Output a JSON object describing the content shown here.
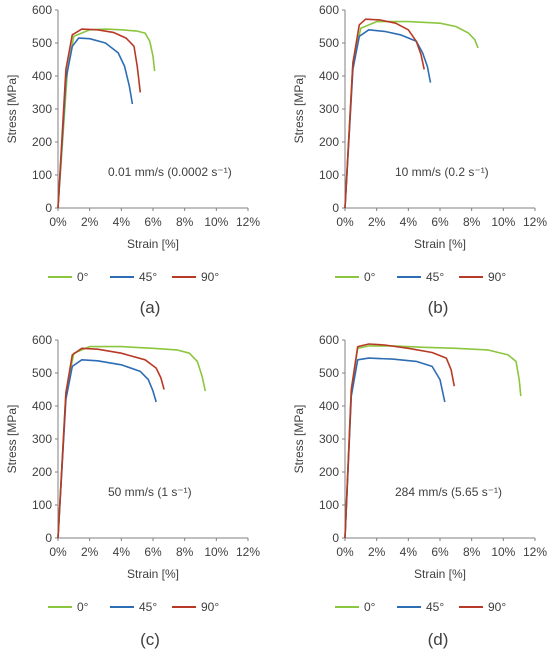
{
  "colors": {
    "s0": "#8CC63F",
    "s45": "#2E6DB4",
    "s90": "#B83A26",
    "axis": "#808080",
    "text": "#404040"
  },
  "chart_data": [
    {
      "type": "line",
      "panel_label": "(a)",
      "annotation": "0.01 mm/s (0.0002 s⁻¹)",
      "xlabel": "Strain [%]",
      "ylabel": "Stress [MPa]",
      "xlim": [
        0,
        12
      ],
      "ylim": [
        0,
        600
      ],
      "xticks": [
        "0%",
        "2%",
        "4%",
        "6%",
        "8%",
        "10%",
        "12%"
      ],
      "yticks": [
        "0",
        "100",
        "200",
        "300",
        "400",
        "500",
        "600"
      ],
      "legend": "bottom",
      "series": [
        {
          "name": "0°",
          "x": [
            0,
            0.6,
            1.0,
            2,
            3,
            4,
            5,
            5.5,
            5.8,
            6.0,
            6.1
          ],
          "y": [
            0,
            420,
            520,
            540,
            542,
            540,
            536,
            530,
            505,
            460,
            415
          ]
        },
        {
          "name": "45°",
          "x": [
            0,
            0.5,
            0.9,
            1.3,
            2,
            3,
            3.8,
            4.2,
            4.5,
            4.7
          ],
          "y": [
            0,
            390,
            490,
            515,
            513,
            500,
            470,
            430,
            370,
            315
          ]
        },
        {
          "name": "90°",
          "x": [
            0,
            0.5,
            0.9,
            1.5,
            2.5,
            3.5,
            4.3,
            4.8,
            5.0,
            5.2
          ],
          "y": [
            0,
            420,
            525,
            542,
            540,
            532,
            515,
            490,
            430,
            350
          ]
        }
      ]
    },
    {
      "type": "line",
      "panel_label": "(b)",
      "annotation": "10 mm/s (0.2 s⁻¹)",
      "xlabel": "Strain [%]",
      "ylabel": "Stress [MPa]",
      "xlim": [
        0,
        12
      ],
      "ylim": [
        0,
        600
      ],
      "xticks": [
        "0%",
        "2%",
        "4%",
        "6%",
        "8%",
        "10%",
        "12%"
      ],
      "yticks": [
        "0",
        "100",
        "200",
        "300",
        "400",
        "500",
        "600"
      ],
      "legend": "bottom",
      "series": [
        {
          "name": "0°",
          "x": [
            0,
            0.5,
            1.0,
            2,
            4,
            6,
            7,
            7.8,
            8.2,
            8.4
          ],
          "y": [
            0,
            440,
            545,
            565,
            565,
            560,
            550,
            530,
            510,
            485
          ]
        },
        {
          "name": "45°",
          "x": [
            0,
            0.5,
            0.9,
            1.5,
            2.5,
            3.5,
            4.5,
            4.9,
            5.2,
            5.4
          ],
          "y": [
            0,
            420,
            520,
            540,
            535,
            525,
            505,
            470,
            430,
            380
          ]
        },
        {
          "name": "90°",
          "x": [
            0,
            0.5,
            0.9,
            1.3,
            2.2,
            3.2,
            4.0,
            4.5,
            4.8,
            5.0
          ],
          "y": [
            0,
            440,
            555,
            572,
            570,
            560,
            540,
            505,
            465,
            420
          ]
        }
      ]
    },
    {
      "type": "line",
      "panel_label": "(c)",
      "annotation": "50 mm/s (1 s⁻¹)",
      "xlabel": "Strain [%]",
      "ylabel": "Stress [MPa]",
      "xlim": [
        0,
        12
      ],
      "ylim": [
        0,
        600
      ],
      "xticks": [
        "0%",
        "2%",
        "4%",
        "6%",
        "8%",
        "10%",
        "12%"
      ],
      "yticks": [
        "0",
        "100",
        "200",
        "300",
        "400",
        "500",
        "600"
      ],
      "legend": "bottom",
      "series": [
        {
          "name": "0°",
          "x": [
            0,
            0.5,
            1.0,
            2,
            4,
            6,
            7.5,
            8.3,
            8.8,
            9.1,
            9.3
          ],
          "y": [
            0,
            440,
            560,
            580,
            580,
            575,
            570,
            560,
            535,
            490,
            445
          ]
        },
        {
          "name": "45°",
          "x": [
            0,
            0.5,
            0.9,
            1.5,
            2.5,
            4,
            5.2,
            5.7,
            6.0,
            6.2
          ],
          "y": [
            0,
            420,
            520,
            540,
            537,
            525,
            505,
            480,
            445,
            412
          ]
        },
        {
          "name": "90°",
          "x": [
            0,
            0.5,
            0.9,
            1.5,
            2.5,
            4,
            5.5,
            6.2,
            6.5,
            6.7
          ],
          "y": [
            0,
            440,
            555,
            575,
            572,
            560,
            540,
            515,
            485,
            450
          ]
        }
      ]
    },
    {
      "type": "line",
      "panel_label": "(d)",
      "annotation": "284 mm/s (5.65 s⁻¹)",
      "xlabel": "Strain [%]",
      "ylabel": "Stress [MPa]",
      "xlim": [
        0,
        12
      ],
      "ylim": [
        0,
        600
      ],
      "xticks": [
        "0%",
        "2%",
        "4%",
        "6%",
        "8%",
        "10%",
        "12%"
      ],
      "yticks": [
        "0",
        "100",
        "200",
        "300",
        "400",
        "500",
        "600"
      ],
      "legend": "bottom",
      "series": [
        {
          "name": "0°",
          "x": [
            0,
            0.4,
            0.8,
            1.5,
            3,
            5,
            7,
            9,
            10.3,
            10.8,
            11.0,
            11.1
          ],
          "y": [
            0,
            450,
            575,
            582,
            582,
            578,
            575,
            570,
            555,
            535,
            480,
            430
          ]
        },
        {
          "name": "45°",
          "x": [
            0,
            0.4,
            0.8,
            1.5,
            3,
            4.5,
            5.5,
            6.0,
            6.3
          ],
          "y": [
            0,
            430,
            540,
            545,
            542,
            535,
            520,
            480,
            412
          ]
        },
        {
          "name": "90°",
          "x": [
            0,
            0.4,
            0.8,
            1.5,
            2.5,
            4,
            5.5,
            6.4,
            6.7,
            6.9
          ],
          "y": [
            0,
            450,
            580,
            588,
            585,
            575,
            562,
            545,
            510,
            460
          ]
        }
      ]
    }
  ]
}
